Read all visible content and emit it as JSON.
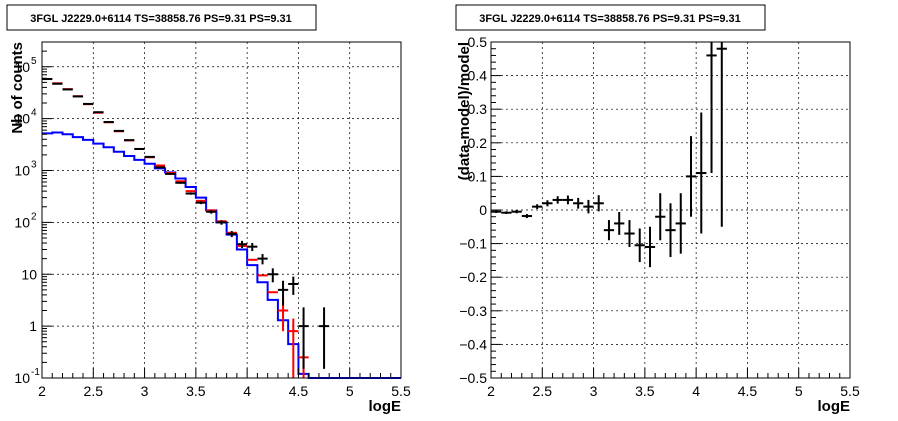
{
  "chart_data": [
    {
      "type": "line",
      "title": "3FGL J2229.0+6114 TS=38858.76 PS=9.31 PS=9.31",
      "xlabel": "logE",
      "ylabel": "Nb of counts",
      "xlim": [
        2,
        5.5
      ],
      "ylim": [
        0.1,
        300000
      ],
      "y_scale": "log",
      "grid": true,
      "x_ticks": [
        "2",
        "2.5",
        "3",
        "3.5",
        "4",
        "4.5",
        "5",
        "5.5"
      ],
      "y_ticks": [
        {
          "value": 0.1,
          "label": "10",
          "exp": "-1"
        },
        {
          "value": 1,
          "label": "1",
          "exp": ""
        },
        {
          "value": 10,
          "label": "10",
          "exp": ""
        },
        {
          "value": 100,
          "label": "10",
          "exp": "2"
        },
        {
          "value": 1000,
          "label": "10",
          "exp": "3"
        },
        {
          "value": 10000,
          "label": "10",
          "exp": "4"
        },
        {
          "value": 100000,
          "label": "10",
          "exp": "5"
        }
      ],
      "series": [
        {
          "color": "#0000ff",
          "style": "step",
          "x": [
            2.0,
            2.1,
            2.2,
            2.3,
            2.4,
            2.5,
            2.6,
            2.7,
            2.8,
            2.9,
            3.0,
            3.1,
            3.2,
            3.3,
            3.4,
            3.5,
            3.6,
            3.7,
            3.8,
            3.9,
            4.0,
            4.1,
            4.2,
            4.3,
            4.4,
            4.5,
            4.6,
            4.7,
            4.8,
            4.9,
            5.0,
            5.1,
            5.2,
            5.3,
            5.4
          ],
          "values": [
            5200,
            5400,
            5000,
            4400,
            3900,
            3300,
            2800,
            2300,
            1900,
            1600,
            1350,
            1100,
            920,
            700,
            480,
            300,
            170,
            100,
            58,
            30,
            15,
            7,
            3.2,
            1.3,
            0.45,
            0.12,
            0.1,
            0.1,
            0.1,
            0.1,
            0.1,
            0.1,
            0.1,
            0.1,
            0.1
          ]
        },
        {
          "color": "#ff0000",
          "style": "points",
          "x": [
            2.05,
            2.15,
            2.25,
            2.35,
            2.45,
            2.55,
            2.65,
            2.75,
            2.85,
            2.95,
            3.05,
            3.15,
            3.25,
            3.35,
            3.45,
            3.55,
            3.65,
            3.75,
            3.85,
            3.95,
            4.05,
            4.15,
            4.25,
            4.35,
            4.45,
            4.55
          ],
          "values": [
            58000,
            48000,
            37000,
            27000,
            19000,
            13000,
            8500,
            5700,
            3800,
            2600,
            1800,
            1250,
            900,
            620,
            400,
            260,
            170,
            105,
            63,
            35,
            19,
            9.5,
            4.5,
            2.0,
            0.8,
            0.25
          ],
          "err_low": [
            0,
            0,
            0,
            0,
            0,
            0,
            0,
            0,
            0,
            0,
            0,
            0,
            0,
            0,
            0,
            0,
            0,
            0,
            0,
            0,
            0,
            0,
            0,
            1.2,
            0.7,
            0.15
          ],
          "err_high": [
            0,
            0,
            0,
            0,
            0,
            0,
            0,
            0,
            0,
            0,
            0,
            0,
            0,
            0,
            0,
            0,
            0,
            0,
            0,
            0,
            0,
            0,
            0,
            1.2,
            0.6,
            0.1
          ]
        },
        {
          "color": "#000000",
          "style": "points",
          "x": [
            2.05,
            2.15,
            2.25,
            2.35,
            2.45,
            2.55,
            2.65,
            2.75,
            2.85,
            2.95,
            3.05,
            3.15,
            3.25,
            3.35,
            3.45,
            3.55,
            3.65,
            3.75,
            3.85,
            3.95,
            4.05,
            4.15,
            4.25,
            4.35,
            4.45,
            4.55,
            4.75
          ],
          "values": [
            58000,
            47000,
            36500,
            26800,
            19200,
            13300,
            8600,
            5800,
            3850,
            2600,
            1830,
            1150,
            860,
            580,
            360,
            240,
            160,
            100,
            60,
            38,
            34,
            20,
            10,
            5,
            6.5,
            1,
            1
          ],
          "err_low": [
            240,
            216,
            191,
            163,
            138,
            115,
            92,
            76,
            62,
            51,
            43,
            34,
            29,
            24,
            19,
            15,
            13,
            10,
            8,
            6,
            6,
            4.5,
            3,
            2.5,
            2.5,
            0.85,
            0.85
          ],
          "err_high": [
            240,
            216,
            191,
            163,
            138,
            115,
            92,
            76,
            62,
            51,
            43,
            34,
            29,
            24,
            19,
            15,
            13,
            10,
            8,
            6,
            6,
            4.5,
            3,
            2.5,
            2.5,
            1.3,
            1.3
          ]
        }
      ]
    },
    {
      "type": "scatter",
      "title": "3FGL J2229.0+6114 TS=38858.76 PS=9.31 PS=9.31",
      "xlabel": "logE",
      "ylabel": "(data-model)/model",
      "xlim": [
        2,
        5.5
      ],
      "ylim": [
        -0.5,
        0.5
      ],
      "grid": true,
      "x_ticks": [
        "2",
        "2.5",
        "3",
        "3.5",
        "4",
        "4.5",
        "5",
        "5.5"
      ],
      "y_ticks": [
        "−0.5",
        "−0.4",
        "−0.3",
        "−0.2",
        "−0.1",
        "0",
        "0.1",
        "0.2",
        "0.3",
        "0.4",
        "0.5"
      ],
      "series": [
        {
          "color": "#000000",
          "x": [
            2.05,
            2.15,
            2.25,
            2.35,
            2.45,
            2.55,
            2.65,
            2.75,
            2.85,
            2.95,
            3.05,
            3.15,
            3.25,
            3.35,
            3.45,
            3.55,
            3.65,
            3.75,
            3.85,
            3.95,
            4.05,
            4.15,
            4.25
          ],
          "values": [
            -0.005,
            -0.008,
            -0.005,
            -0.018,
            0.01,
            0.02,
            0.03,
            0.03,
            0.02,
            0.01,
            0.02,
            -0.06,
            -0.04,
            -0.07,
            -0.105,
            -0.11,
            -0.02,
            -0.06,
            -0.04,
            0.1,
            0.11,
            0.46,
            0.48
          ],
          "err": [
            0.004,
            0.004,
            0.005,
            0.006,
            0.007,
            0.009,
            0.011,
            0.013,
            0.016,
            0.02,
            0.024,
            0.03,
            0.034,
            0.04,
            0.05,
            0.06,
            0.07,
            0.08,
            0.09,
            0.12,
            0.18,
            0.35,
            0.53
          ]
        }
      ]
    }
  ]
}
